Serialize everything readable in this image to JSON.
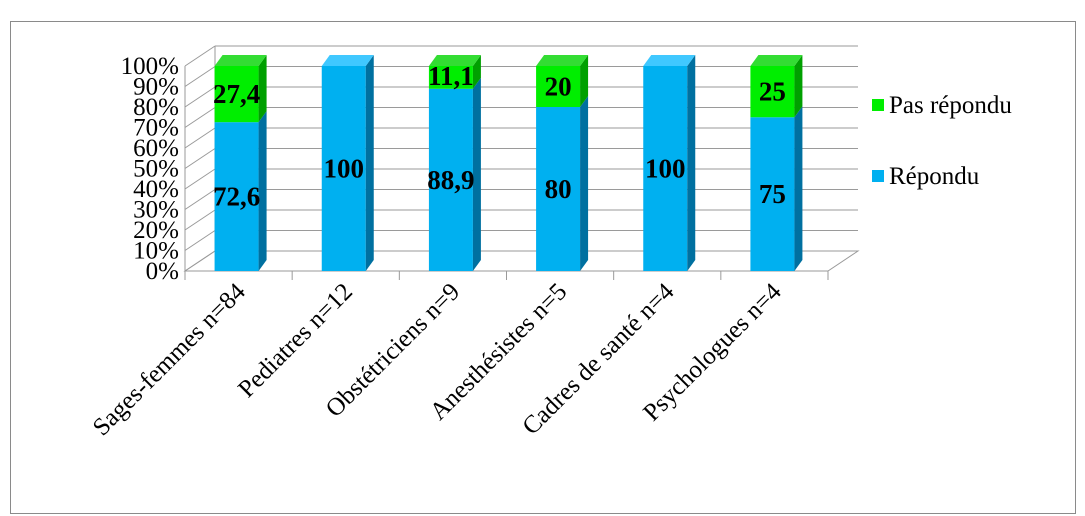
{
  "chart_data": {
    "type": "bar",
    "stacked": true,
    "percent_stacked": true,
    "three_d": true,
    "categories": [
      "Sages-femmes  n=84",
      "Pediatres n=12",
      "Obstétriciens  n=9",
      "Anesthésistes  n=5",
      "Cadres de santé  n=4",
      "Psychologues   n=4"
    ],
    "series": [
      {
        "name": "Répondu",
        "values": [
          72.6,
          100,
          88.9,
          80,
          100,
          75
        ],
        "labels": [
          "72,6",
          "100",
          "88,9",
          "80",
          "100",
          "75"
        ],
        "color": "#00B0F0",
        "side_color": "#0070A0",
        "top_color": "#40C8FF"
      },
      {
        "name": "Pas répondu",
        "values": [
          27.4,
          0,
          11.1,
          20,
          0,
          25
        ],
        "labels": [
          "27,4",
          "",
          "11,1",
          "20",
          "",
          "25"
        ],
        "color": "#00EE00",
        "side_color": "#00A000",
        "top_color": "#33DD33"
      }
    ],
    "y_ticks": [
      "0%",
      "10%",
      "20%",
      "30%",
      "40%",
      "50%",
      "60%",
      "70%",
      "80%",
      "90%",
      "100%"
    ],
    "ylim": [
      0,
      100
    ],
    "grid": true,
    "legend_position": "right",
    "legend_order": [
      "Pas répondu",
      "Répondu"
    ]
  }
}
